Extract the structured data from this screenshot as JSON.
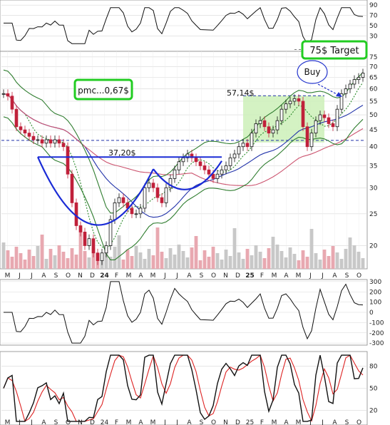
{
  "chart_data": {
    "type": "stock",
    "months": [
      "M",
      "J",
      "J",
      "A",
      "S",
      "O",
      "N",
      "D",
      "24",
      "F",
      "M",
      "A",
      "M",
      "J",
      "J",
      "A",
      "S",
      "O",
      "N",
      "D",
      "25",
      "F",
      "M",
      "A",
      "M",
      "J",
      "J",
      "A",
      "S",
      "O"
    ],
    "panels": {
      "rsi": {
        "ticks": [
          "90",
          "70",
          "50",
          "30"
        ],
        "ylim": [
          0,
          100
        ]
      },
      "price": {
        "scale": "log",
        "ticks": [
          "75",
          "70",
          "65",
          "60",
          "55",
          "50",
          "45",
          "40",
          "35",
          "30",
          "25",
          "20"
        ],
        "ylim": [
          17,
          78
        ]
      },
      "cci": {
        "ticks": [
          "300",
          "200",
          "100",
          "0",
          "-100",
          "-200",
          "-300"
        ],
        "ylim": [
          -320,
          320
        ]
      },
      "stoch": {
        "ticks": [
          "80",
          "50",
          "20"
        ],
        "ylim": [
          0,
          100
        ]
      }
    },
    "annotations": {
      "target": "75$ Target",
      "buy": "Buy",
      "pmc": "pmc...0,67$",
      "level_high": "57,14$",
      "level_low": "37,20$"
    },
    "levels": {
      "high": 57.14,
      "low": 37.2,
      "target": 75
    },
    "price_series": [
      58,
      57,
      52,
      46,
      45,
      44,
      43,
      42,
      42,
      41,
      42,
      41,
      42,
      41,
      40,
      33,
      27,
      23,
      22,
      20,
      21,
      19,
      18,
      19,
      20,
      24,
      27,
      28,
      27,
      26,
      25,
      25,
      26,
      30,
      31,
      30,
      28,
      27,
      30,
      32,
      34,
      36,
      37,
      38,
      37,
      36,
      35,
      34,
      33,
      32,
      33,
      34,
      35,
      37,
      38,
      40,
      41,
      40,
      44,
      47,
      48,
      46,
      44,
      45,
      48,
      52,
      54,
      55,
      56,
      55,
      46,
      40,
      44,
      48,
      50,
      49,
      47,
      46,
      52,
      58,
      60,
      62,
      64,
      65,
      67
    ],
    "colors": {
      "up": "#111111",
      "down": "#c0203a",
      "bb_band": "#2f7d2f",
      "sma_fast": "#2a8a2a",
      "sma_mid": "#2233aa",
      "sma_slow": "#cc5570",
      "pattern": "#1a2bd6",
      "box_green": "#ccf0b8",
      "callout_border": "#22cc22",
      "stoch_k": "#111111",
      "stoch_d": "#dd2222"
    }
  }
}
